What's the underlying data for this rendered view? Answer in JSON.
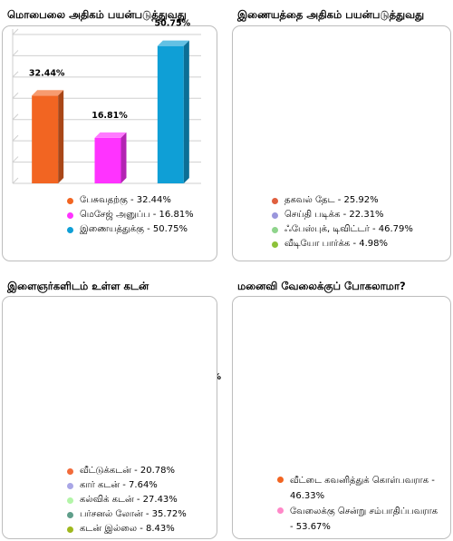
{
  "chart_data": [
    {
      "type": "bar",
      "title": "மொபைலை அதிகம் பயன்படுத்துவது",
      "categories": [
        "பேசுவதற்கு",
        "மெசேஜ் அனுப்ப",
        "இணையத்துக்கு"
      ],
      "values": [
        32.44,
        16.81,
        50.75
      ],
      "data_labels": [
        "32.44%",
        "16.81%",
        "50.75%"
      ],
      "colors": [
        "#f26522",
        "#ff33ff",
        "#0f9fd6"
      ],
      "ylim": [
        0,
        55
      ],
      "grid": true,
      "legend_position": "bottom",
      "legend": [
        {
          "label": "பேசுவதற்கு - 32.44%",
          "color": "#f26522"
        },
        {
          "label": "மெசேஜ் அனுப்ப - 16.81%",
          "color": "#ff33ff"
        },
        {
          "label": "இணையத்துக்கு - 50.75%",
          "color": "#0f9fd6"
        }
      ]
    },
    {
      "type": "pyramid",
      "title": "இணையத்தை அதிகம் பயன்படுத்துவது",
      "categories": [
        "தகவல் தேட",
        "செய்தி படிக்க",
        "ஃபேஸ்புக், டிவிட்டர்",
        "வீடியோ பார்க்க"
      ],
      "values": [
        25.92,
        22.31,
        46.79,
        4.98
      ],
      "data_labels": [
        "25.92%",
        "22.31%",
        "46.79%",
        "4.98%"
      ],
      "colors": [
        "#f26b4f",
        "#a9a6e6",
        "#a9e39a",
        "#9fd13a"
      ],
      "legend_position": "bottom",
      "legend": [
        {
          "label": "தகவல் தேட - 25.92%",
          "color": "#e0603f"
        },
        {
          "label": "செய்தி படிக்க - 22.31%",
          "color": "#9a96dc"
        },
        {
          "label": "ஃபேஸ்புக், டிவிட்டர் - 46.79%",
          "color": "#8fd48c"
        },
        {
          "label": "வீடியோ பார்க்க - 4.98%",
          "color": "#8dc23a"
        }
      ]
    },
    {
      "type": "pie",
      "title": "இளைஞர்களிடம் உள்ள கடன்",
      "categories": [
        "வீட்டுக்கடன்",
        "கார் கடன்",
        "கல்விக் கடன்",
        "பர்சனல் லோன்",
        "கடன் இல்லை"
      ],
      "values": [
        20.78,
        7.64,
        27.43,
        35.72,
        8.43
      ],
      "data_labels": [
        "20.78%",
        "7.64%",
        "27.43%",
        "35.72%",
        "8.43%"
      ],
      "colors": [
        "#ff6a3d",
        "#b3b3f2",
        "#b3f5a8",
        "#5f9e8a",
        "#9fb81e"
      ],
      "exploded": true,
      "legend_position": "bottom",
      "legend": [
        {
          "label": "வீட்டுக்கடன் - 20.78%",
          "color": "#f26b3a"
        },
        {
          "label": "கார் கடன் - 7.64%",
          "color": "#a9a6e6"
        },
        {
          "label": "கல்விக் கடன் - 27.43%",
          "color": "#b3f5a8"
        },
        {
          "label": "பர்சனல் லோன் - 35.72%",
          "color": "#5f9e8a"
        },
        {
          "label": "கடன் இல்லை - 8.43%",
          "color": "#9fb81e"
        }
      ]
    },
    {
      "type": "pie",
      "title": "மனைவி வேலைக்குப் போகலாமா?",
      "categories": [
        "வீட்டை கவனித்துக் கொள்பவராக",
        "வேலைக்கு சென்று சம்பாதிப்பவராக"
      ],
      "values": [
        46.33,
        53.67
      ],
      "data_labels": [
        "46.33%",
        "53.67%"
      ],
      "colors": [
        "#ff5f1f",
        "#ff9fd2"
      ],
      "legend_position": "bottom",
      "legend": [
        {
          "label": "வீட்டை கவனித்துக் கொள்பவராக - 46.33%",
          "color": "#f26522"
        },
        {
          "label": "வேலைக்கு சென்று சம்பாதிப்பவராக - 53.67%",
          "color": "#ff88c8"
        }
      ]
    }
  ]
}
